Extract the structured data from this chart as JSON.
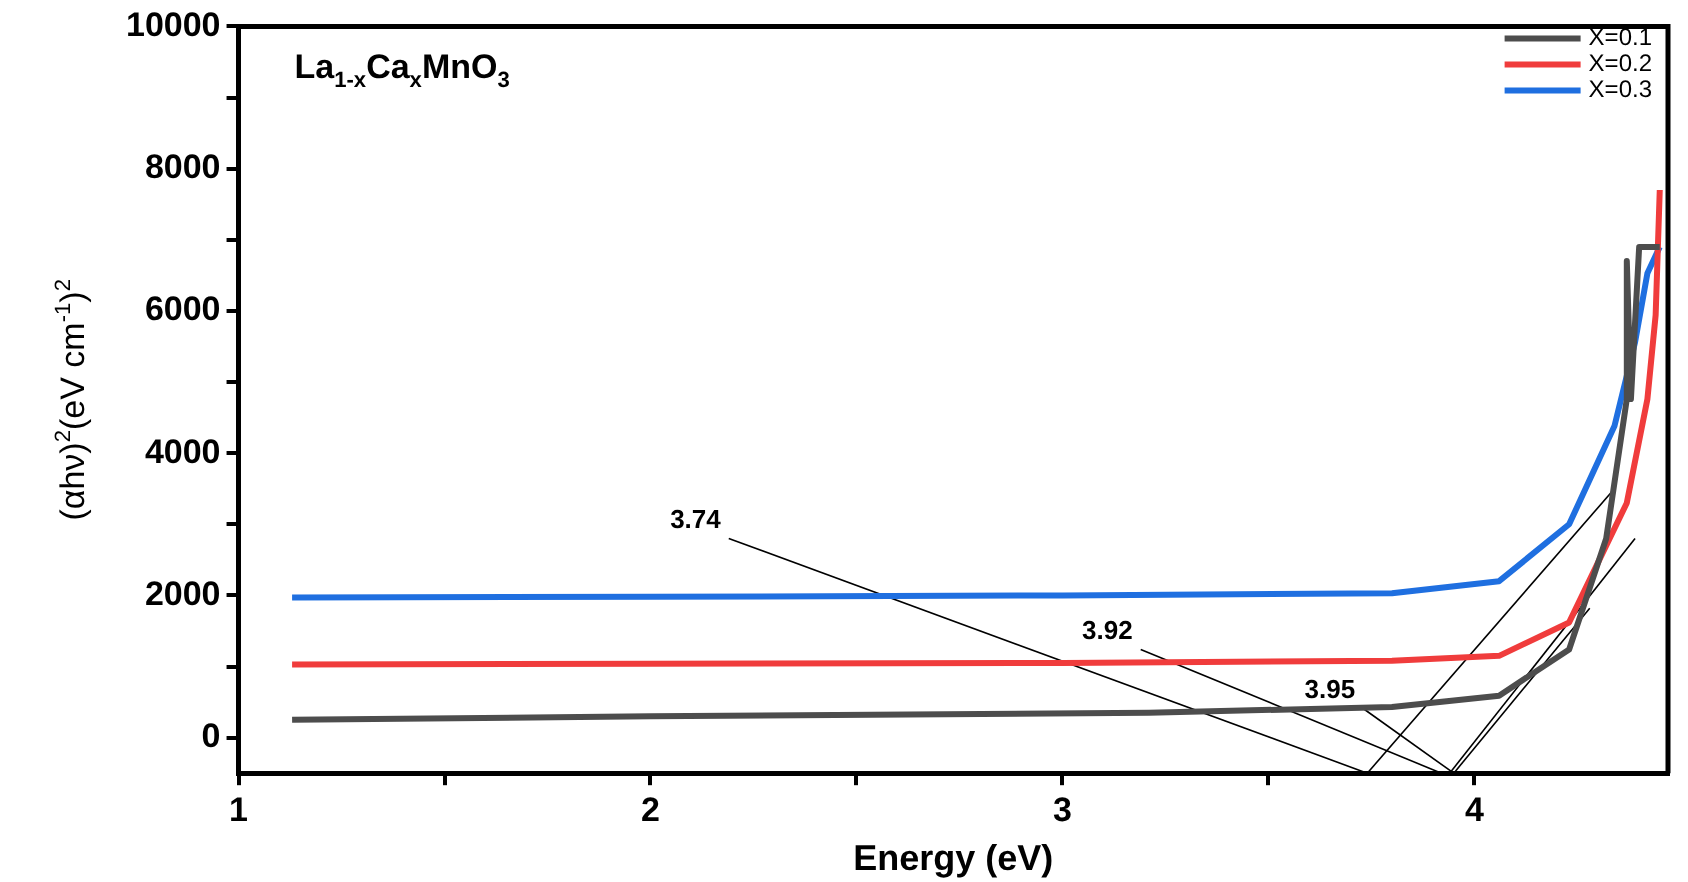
{
  "chart_data": {
    "type": "line",
    "title": "La$_{1-x}$Ca$_{x}$MnO$_{3}$",
    "xlabel": "Energy (eV)",
    "ylabel": "(αhν)$^{2}$(eV cm$^{-1}$)$^{2}$",
    "xlim": [
      1,
      4.47
    ],
    "xticks": [
      1,
      {
        "value": 1.5,
        "label": null
      },
      2,
      {
        "value": 2.5,
        "label": null
      },
      3,
      {
        "value": 3.5,
        "label": null
      },
      4
    ],
    "ylim": [
      -500,
      10000
    ],
    "yticks": [
      0,
      {
        "value": 1000,
        "label": null
      },
      2000,
      {
        "value": 3000,
        "label": null
      },
      4000,
      {
        "value": 5000,
        "label": null
      },
      6000,
      {
        "value": 7000,
        "label": null
      },
      8000,
      {
        "value": 9000,
        "label": null
      },
      10000
    ],
    "grid": false,
    "legend": "top right",
    "marker": "none",
    "line_style": "solid",
    "annotations": [
      {
        "text": "3.74",
        "x": 2.19,
        "y": 2800
      },
      {
        "text": "3.92",
        "x": 3.19,
        "y": 1240
      },
      {
        "text": "3.95",
        "x": 3.73,
        "y": 410
      }
    ],
    "series": [
      {
        "name": "X=0.1",
        "color": "#4d4d4d",
        "x": [
          1.13,
          2,
          3.21,
          3.8,
          4.06,
          4.23,
          4.32,
          4.37,
          4.37,
          4.38,
          4.4,
          4.45
        ],
        "values": [
          250,
          300,
          350,
          430,
          590,
          1240,
          2800,
          4760,
          6700,
          4760,
          6900,
          6900
        ]
      },
      {
        "name": "X=0.2",
        "color": "#f03c3c",
        "x": [
          1.13,
          2,
          3,
          3.8,
          4.06,
          4.23,
          4.37,
          4.42,
          4.44,
          4.45
        ],
        "values": [
          1030,
          1040,
          1050,
          1080,
          1150,
          1620,
          3300,
          4760,
          5940,
          7700
        ]
      },
      {
        "name": "X=0.3",
        "color": "#1f6fe0",
        "x": [
          1.13,
          2,
          3,
          3.8,
          4.06,
          4.23,
          4.34,
          4.39,
          4.42,
          4.45
        ],
        "values": [
          1970,
          1980,
          2000,
          2030,
          2200,
          3000,
          4380,
          5560,
          6530,
          6900
        ]
      },
      {
        "color": "#000000",
        "x": [
          3.74,
          4.34
        ],
        "values": [
          -500,
          3500
        ]
      },
      {
        "color": "#000000",
        "x": [
          3.94,
          4.39
        ],
        "values": [
          -500,
          2800
        ]
      },
      {
        "color": "#000000",
        "x": [
          3.95,
          4.28
        ],
        "values": [
          -500,
          1820
        ]
      },
      {
        "color": "#000000",
        "x": [
          3.74,
          2.19
        ],
        "values": [
          -500,
          2800
        ]
      },
      {
        "color": "#000000",
        "x": [
          3.92,
          3.19
        ],
        "values": [
          -500,
          1240
        ]
      },
      {
        "color": "#000000",
        "x": [
          3.95,
          3.73
        ],
        "values": [
          -500,
          410
        ]
      }
    ]
  }
}
